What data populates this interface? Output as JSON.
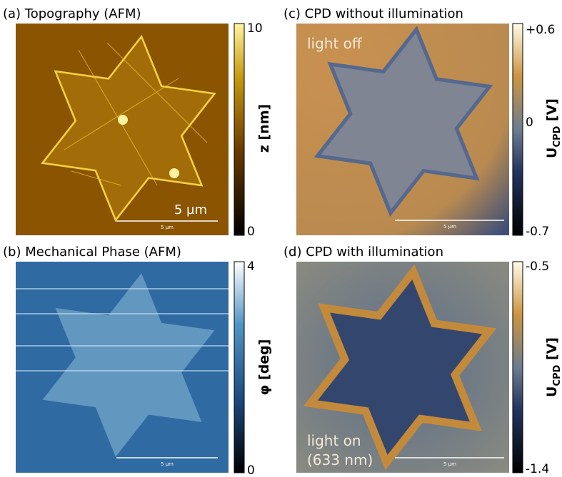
{
  "panels": [
    {
      "title": "(a) Topography (AFM)",
      "colorbar": {
        "top": "10",
        "bottom": "0",
        "label": "z [nm]"
      },
      "scalebar_large": "5 µm",
      "scalebar": "5 µm"
    },
    {
      "title": "(b) Mechanical Phase (AFM)",
      "colorbar": {
        "top": "4",
        "bottom": "0",
        "label": "φ [deg]"
      },
      "scalebar": "5 µm"
    },
    {
      "title": "(c) CPD without illumination",
      "annotation": "light off",
      "colorbar": {
        "top": "+0.6",
        "middle": "0",
        "bottom": "-0.7",
        "label_main": "U",
        "label_sub": "CPD",
        "label_unit": " [V]"
      },
      "scalebar": "5 µm"
    },
    {
      "title": "(d) CPD with illumination",
      "annotation": "light on",
      "annotation2": "(633 nm)",
      "colorbar": {
        "top": "-0.5",
        "bottom": "-1.4",
        "label_main": "U",
        "label_sub": "CPD",
        "label_unit": " [V]"
      },
      "scalebar": "5 µm"
    }
  ]
}
